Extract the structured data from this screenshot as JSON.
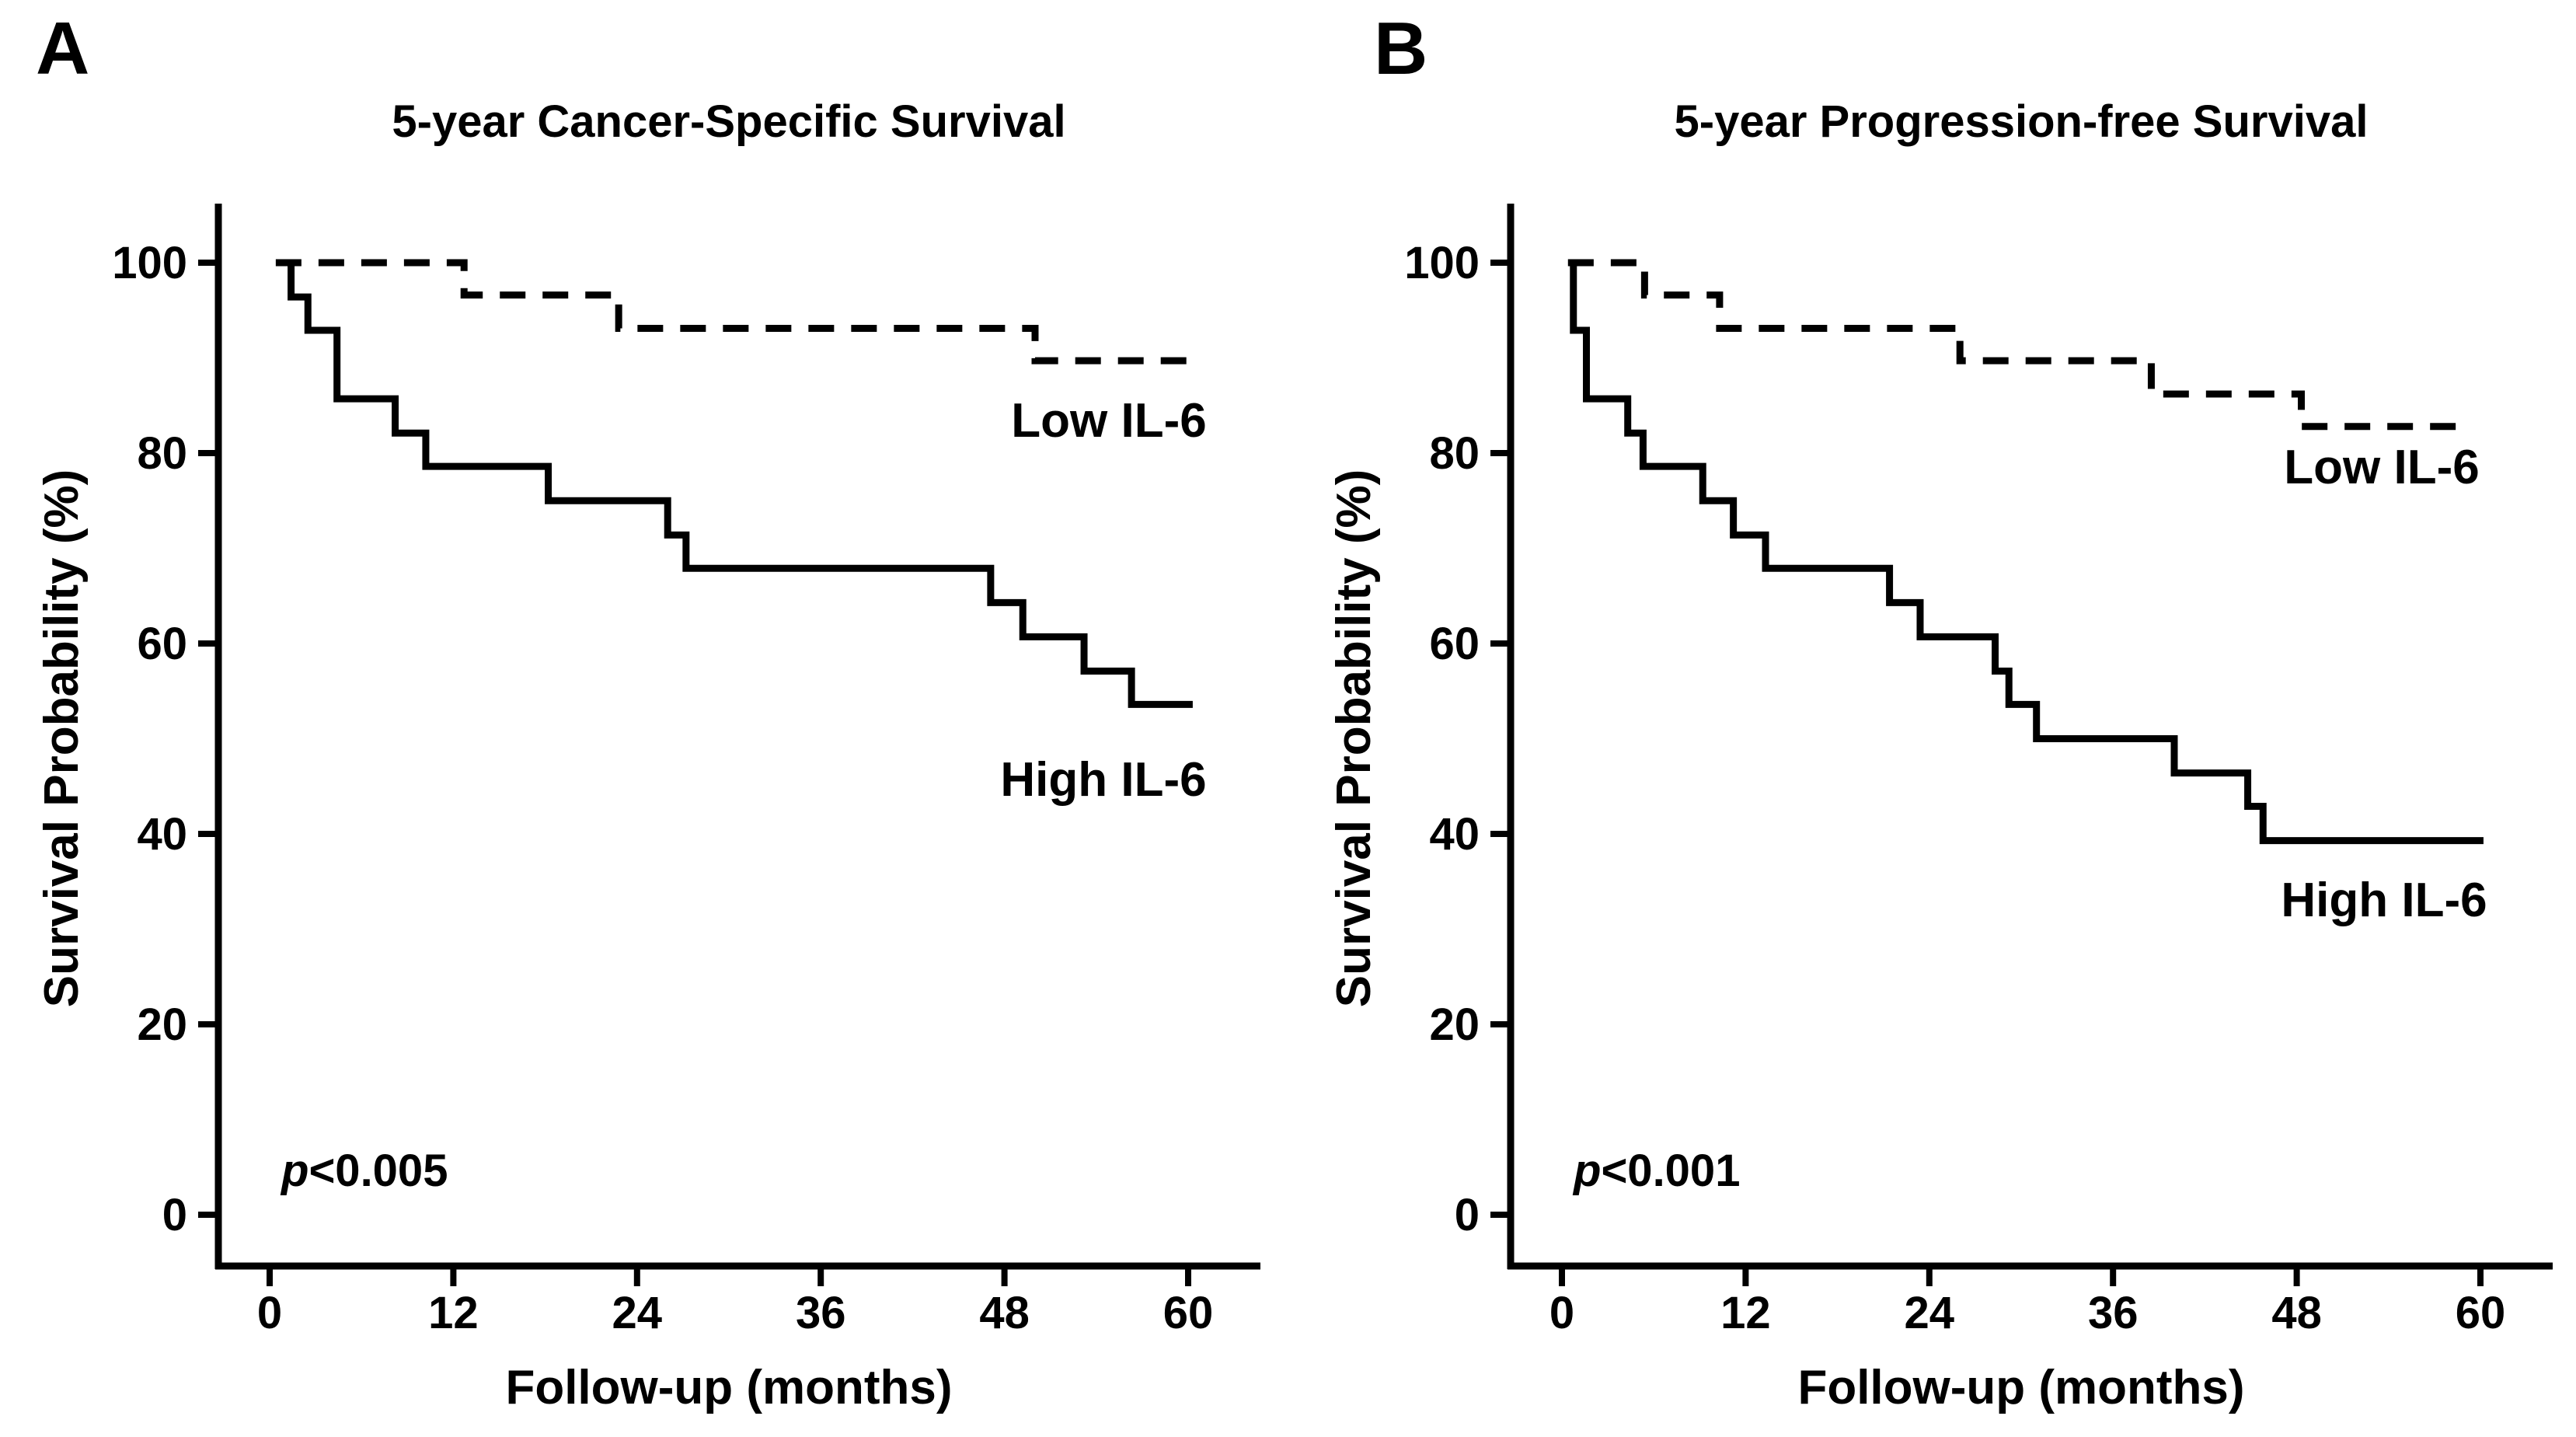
{
  "figure": {
    "background_color": "#ffffff",
    "ink_color": "#000000"
  },
  "chart_data": [
    {
      "panel_label": "A",
      "type": "line",
      "subtype": "kaplan-meier-step",
      "title": "5-year Cancer-Specific Survival",
      "xlabel": "Follow-up (months)",
      "ylabel": "Survival Probability (%)",
      "annotation_p_symbol": "p",
      "annotation_p_rest": "<0.005",
      "xlim": [
        0,
        60
      ],
      "ylim": [
        0,
        100
      ],
      "x_ticks": [
        0,
        12,
        24,
        36,
        48,
        60
      ],
      "y_ticks": [
        0,
        20,
        40,
        60,
        80,
        100
      ],
      "grid": "off",
      "legend_position": "in-plot text labels",
      "series": [
        {
          "name": "Low IL-6",
          "style": "dashed",
          "points": [
            [
              0.4,
              100
            ],
            [
              12.7,
              96.6
            ],
            [
              22.8,
              93.1
            ],
            [
              50,
              89.7
            ],
            [
              60.5,
              89.7
            ]
          ]
        },
        {
          "name": "High IL-6",
          "style": "solid",
          "points": [
            [
              0.5,
              100
            ],
            [
              1.4,
              96.4
            ],
            [
              2.5,
              92.9
            ],
            [
              4.4,
              85.7
            ],
            [
              8.2,
              82.1
            ],
            [
              10.2,
              78.6
            ],
            [
              18.2,
              75
            ],
            [
              26,
              71.4
            ],
            [
              27.2,
              67.9
            ],
            [
              47.1,
              64.3
            ],
            [
              49.2,
              60.7
            ],
            [
              53.2,
              57.1
            ],
            [
              56.3,
              53.6
            ],
            [
              60.3,
              53.6
            ]
          ]
        }
      ]
    },
    {
      "panel_label": "B",
      "type": "line",
      "subtype": "kaplan-meier-step",
      "title": "5-year Progression-free Survival",
      "xlabel": "Follow-up (months)",
      "ylabel": "Survival Probability (%)",
      "annotation_p_symbol": "p",
      "annotation_p_rest": "<0.001",
      "xlim": [
        0,
        60
      ],
      "ylim": [
        0,
        100
      ],
      "x_ticks": [
        0,
        12,
        24,
        36,
        48,
        60
      ],
      "y_ticks": [
        0,
        20,
        40,
        60,
        80,
        100
      ],
      "grid": "off",
      "legend_position": "in-plot text labels",
      "series": [
        {
          "name": "Low IL-6",
          "style": "dashed",
          "points": [
            [
              0.4,
              100
            ],
            [
              5.4,
              96.6
            ],
            [
              10.3,
              93.1
            ],
            [
              26,
              89.7
            ],
            [
              38.5,
              86.2
            ],
            [
              48.3,
              82.8
            ],
            [
              58.8,
              82.8
            ]
          ]
        },
        {
          "name": "High IL-6",
          "style": "solid",
          "points": [
            [
              0.4,
              100
            ],
            [
              0.75,
              92.9
            ],
            [
              1.6,
              85.7
            ],
            [
              4.3,
              82.1
            ],
            [
              5.3,
              78.6
            ],
            [
              9.2,
              75
            ],
            [
              11.2,
              71.4
            ],
            [
              13.3,
              67.9
            ],
            [
              21.4,
              64.3
            ],
            [
              23.4,
              60.7
            ],
            [
              28.3,
              57.1
            ],
            [
              29.2,
              53.6
            ],
            [
              31,
              50
            ],
            [
              40,
              46.4
            ],
            [
              44.8,
              42.9
            ],
            [
              45.8,
              39.3
            ],
            [
              60.2,
              39.3
            ]
          ]
        }
      ]
    }
  ]
}
